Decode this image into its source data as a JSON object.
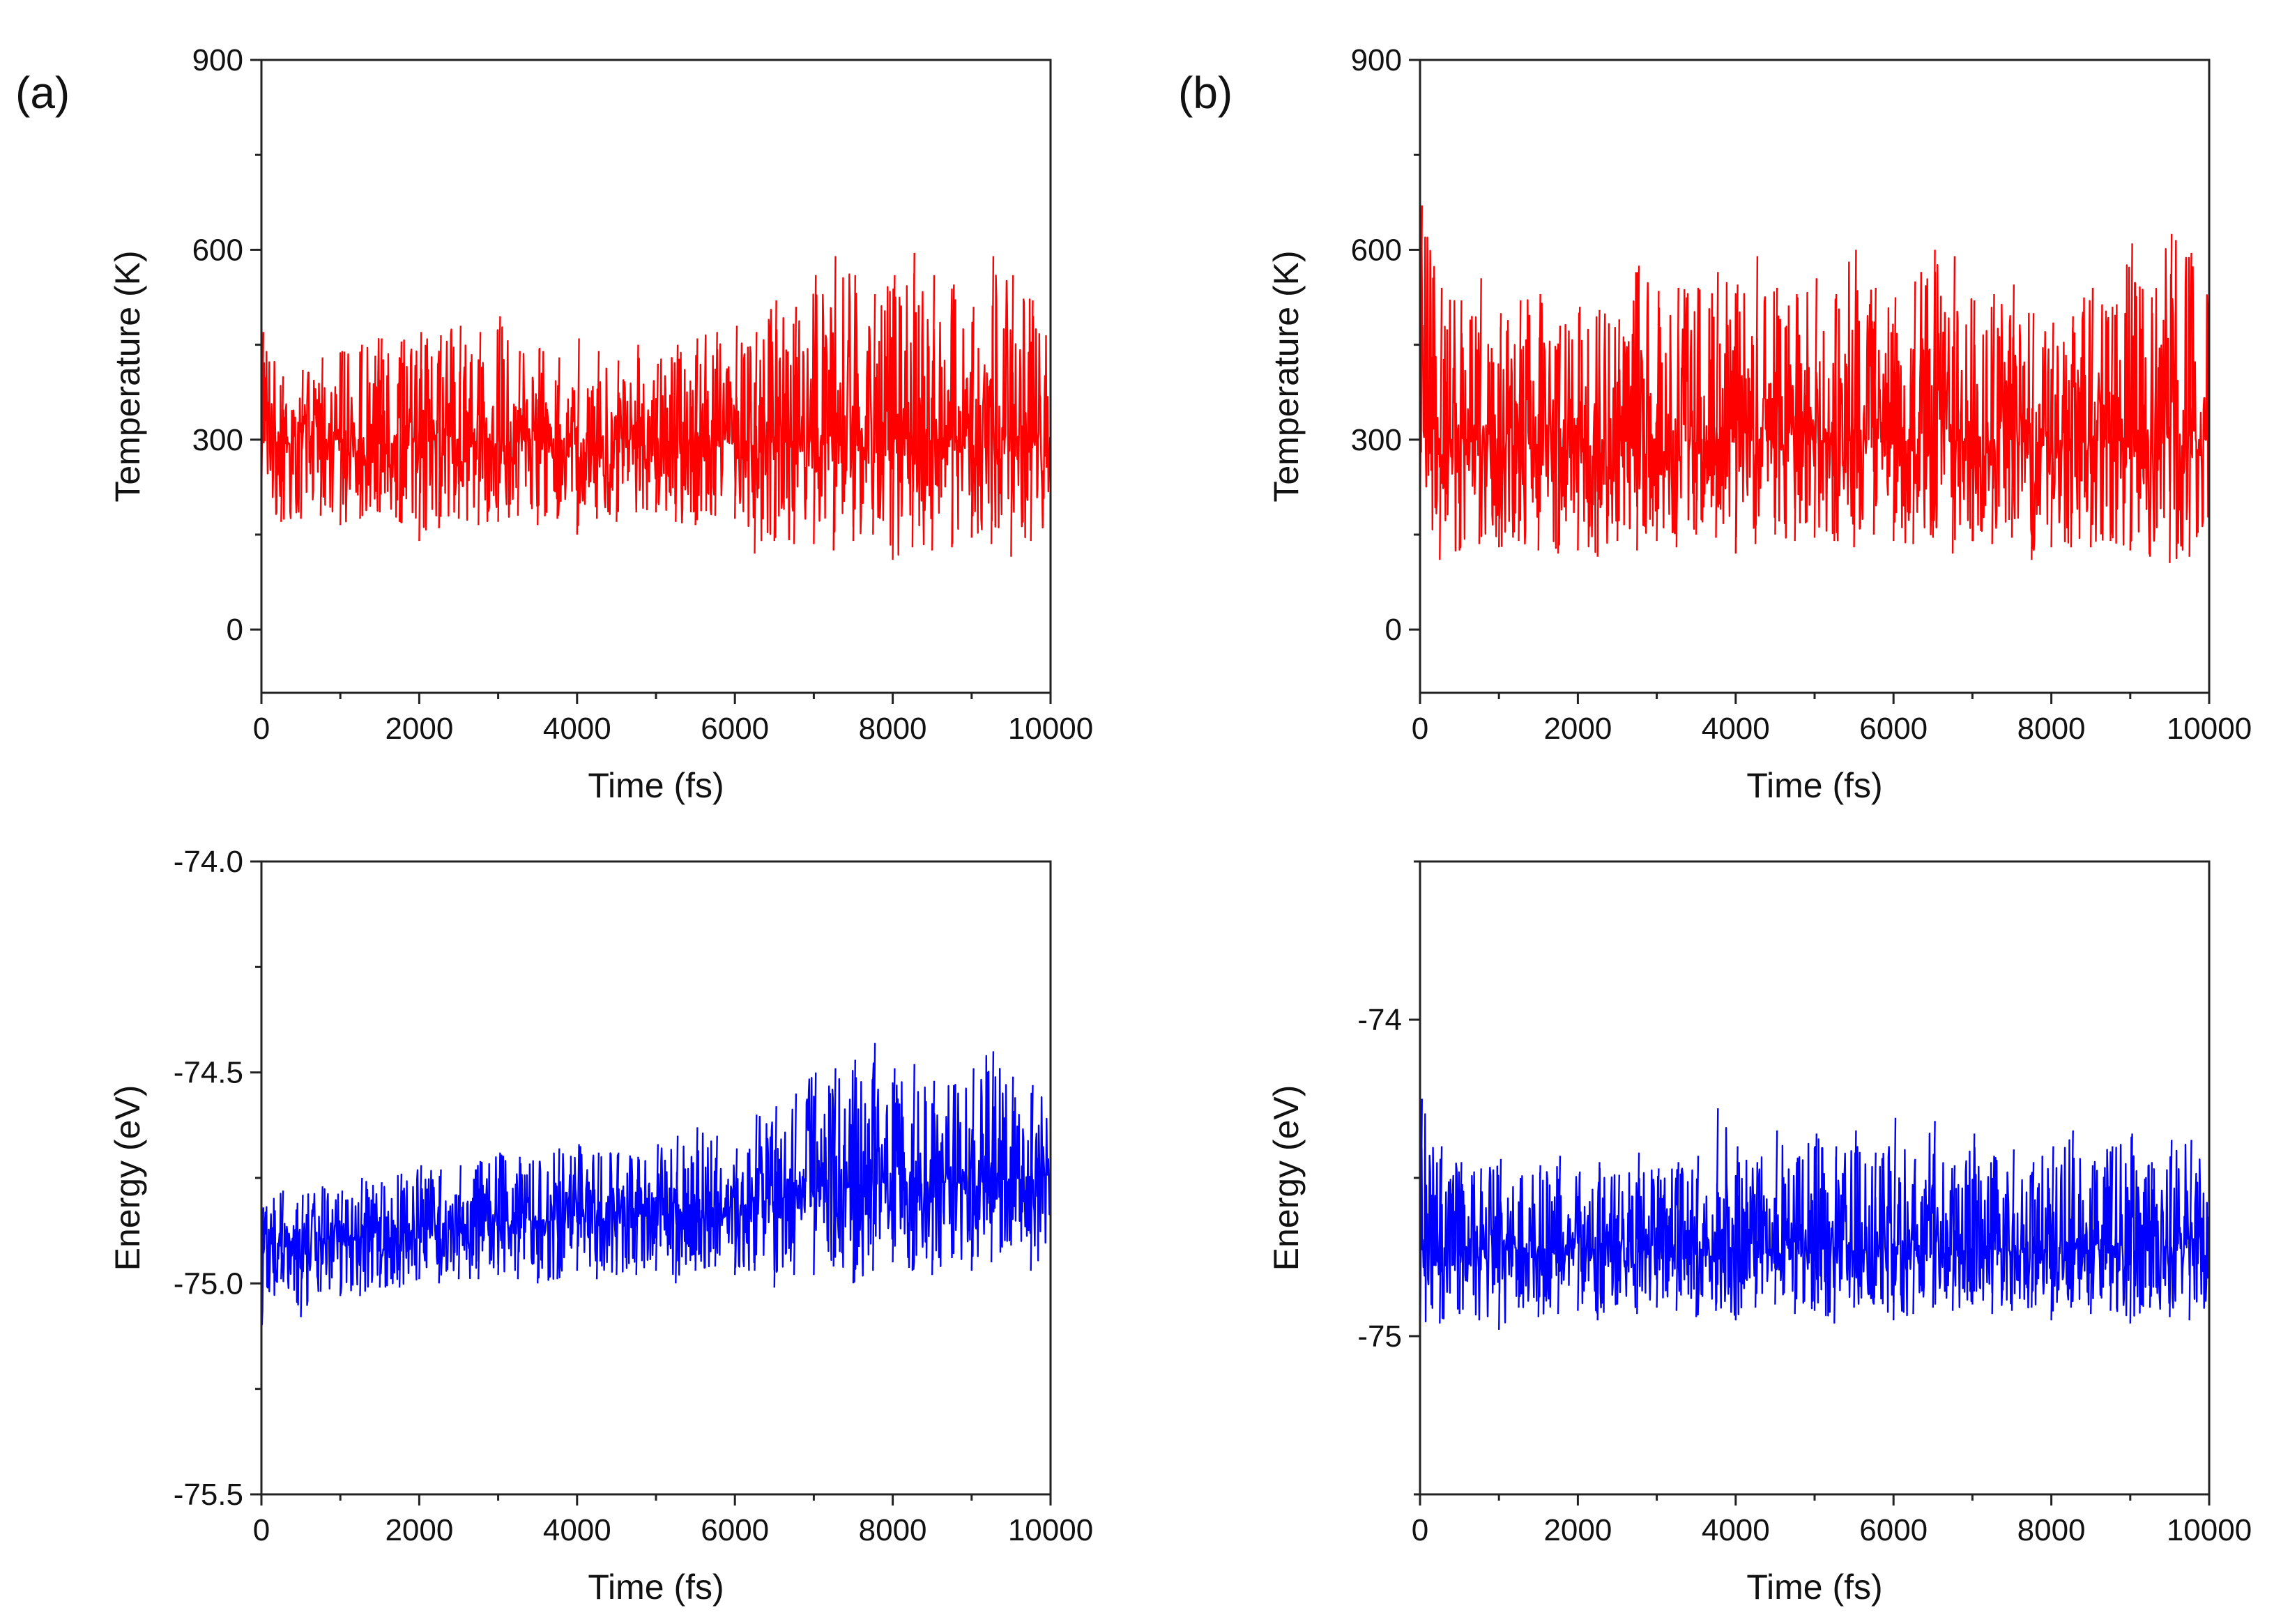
{
  "panels": [
    {
      "label": "(a)"
    },
    {
      "label": "(b)"
    }
  ],
  "chart_data": [
    {
      "id": "a-temperature",
      "panel": "(a)",
      "type": "line",
      "title": "",
      "xlabel": "Time (fs)",
      "ylabel": "Temperature (K)",
      "xlim": [
        0,
        10000
      ],
      "ylim": [
        -100,
        900
      ],
      "xticks": [
        0,
        2000,
        4000,
        6000,
        8000,
        10000
      ],
      "yticks": [
        0,
        300,
        600,
        900
      ],
      "color": "#ff0000",
      "grid": false,
      "series": [
        {
          "name": "Temperature",
          "sample_step_fs": 250,
          "mean": [
            340,
            290,
            300,
            300,
            300,
            300,
            300,
            300,
            300,
            300,
            300,
            300,
            300,
            300,
            300,
            300,
            300,
            300,
            300,
            300,
            300,
            300,
            300,
            300,
            300,
            300,
            300,
            300,
            300,
            300,
            300,
            300,
            300,
            300,
            300,
            300,
            300,
            300,
            300,
            300,
            300
          ],
          "min": [
            210,
            170,
            175,
            180,
            165,
            175,
            185,
            170,
            140,
            160,
            175,
            165,
            170,
            180,
            165,
            175,
            150,
            175,
            170,
            185,
            185,
            170,
            165,
            180,
            175,
            120,
            140,
            135,
            135,
            125,
            140,
            150,
            110,
            130,
            125,
            130,
            145,
            135,
            115,
            140,
            170
          ],
          "max": [
            470,
            400,
            410,
            430,
            440,
            450,
            460,
            455,
            470,
            465,
            480,
            470,
            495,
            440,
            445,
            430,
            460,
            440,
            425,
            450,
            420,
            450,
            460,
            470,
            480,
            470,
            520,
            510,
            560,
            590,
            560,
            530,
            560,
            595,
            560,
            545,
            510,
            590,
            560,
            520,
            460
          ]
        }
      ]
    },
    {
      "id": "a-energy",
      "panel": "(a)",
      "type": "line",
      "title": "",
      "xlabel": "Time (fs)",
      "ylabel": "Energy (eV)",
      "xlim": [
        0,
        10000
      ],
      "ylim": [
        -75.5,
        -74.0
      ],
      "xticks": [
        0,
        2000,
        4000,
        6000,
        8000,
        10000
      ],
      "yticks": [
        -75.5,
        -75.0,
        -74.5,
        -74.0
      ],
      "ytick_labels": [
        "-75.5",
        "-75.0",
        "-74.5",
        "-74.0"
      ],
      "color": "#0000ff",
      "grid": false,
      "series": [
        {
          "name": "Energy",
          "sample_step_fs": 250,
          "mean": [
            -74.93,
            -74.91,
            -74.91,
            -74.9,
            -74.9,
            -74.89,
            -74.89,
            -74.88,
            -74.88,
            -74.87,
            -74.87,
            -74.86,
            -74.86,
            -74.86,
            -74.85,
            -74.85,
            -74.85,
            -74.85,
            -74.84,
            -74.84,
            -74.84,
            -74.83,
            -74.83,
            -74.82,
            -74.82,
            -74.81,
            -74.8,
            -74.79,
            -74.78,
            -74.77,
            -74.77,
            -74.76,
            -74.76,
            -74.76,
            -74.76,
            -74.76,
            -74.76,
            -74.76,
            -74.75,
            -74.75,
            -74.75
          ],
          "min": [
            -75.12,
            -74.99,
            -75.08,
            -75.02,
            -75.03,
            -75.03,
            -75.01,
            -75.01,
            -74.99,
            -75.0,
            -74.99,
            -74.99,
            -74.98,
            -74.99,
            -75.0,
            -74.99,
            -74.97,
            -74.99,
            -74.98,
            -74.98,
            -74.97,
            -75.0,
            -74.97,
            -74.96,
            -74.98,
            -74.97,
            -75.01,
            -74.98,
            -74.98,
            -74.96,
            -75.0,
            -74.97,
            -74.95,
            -74.97,
            -74.98,
            -74.94,
            -74.97,
            -74.95,
            -74.91,
            -74.97,
            -74.92
          ],
          "max": [
            -74.82,
            -74.78,
            -74.79,
            -74.77,
            -74.78,
            -74.75,
            -74.76,
            -74.74,
            -74.72,
            -74.73,
            -74.72,
            -74.71,
            -74.69,
            -74.7,
            -74.71,
            -74.68,
            -74.67,
            -74.69,
            -74.69,
            -74.7,
            -74.67,
            -74.65,
            -74.63,
            -74.65,
            -74.68,
            -74.6,
            -74.58,
            -74.55,
            -74.5,
            -74.49,
            -74.47,
            -74.43,
            -74.49,
            -74.48,
            -74.52,
            -74.53,
            -74.49,
            -74.45,
            -74.51,
            -74.53,
            -74.53
          ]
        }
      ]
    },
    {
      "id": "b-temperature",
      "panel": "(b)",
      "type": "line",
      "title": "",
      "xlabel": "Time (fs)",
      "ylabel": "Temperature (K)",
      "xlim": [
        0,
        10000
      ],
      "ylim": [
        -100,
        900
      ],
      "xticks": [
        0,
        2000,
        4000,
        6000,
        8000,
        10000
      ],
      "yticks": [
        0,
        300,
        600,
        900
      ],
      "color": "#ff0000",
      "grid": false,
      "series": [
        {
          "name": "Temperature",
          "sample_step_fs": 250,
          "mean": [
            310,
            300,
            300,
            300,
            300,
            300,
            300,
            300,
            300,
            300,
            300,
            300,
            300,
            300,
            300,
            300,
            300,
            300,
            300,
            300,
            300,
            300,
            300,
            300,
            300,
            300,
            300,
            300,
            300,
            300,
            300,
            300,
            300,
            300,
            300,
            300,
            300,
            300,
            300,
            300,
            300
          ],
          "min": [
            160,
            110,
            125,
            135,
            130,
            140,
            125,
            120,
            125,
            115,
            140,
            125,
            140,
            130,
            150,
            145,
            120,
            135,
            150,
            140,
            145,
            140,
            130,
            150,
            140,
            135,
            145,
            120,
            140,
            135,
            145,
            110,
            130,
            130,
            130,
            140,
            125,
            115,
            105,
            115,
            150
          ],
          "max": [
            670,
            540,
            520,
            555,
            500,
            520,
            530,
            480,
            510,
            505,
            490,
            575,
            535,
            540,
            540,
            565,
            545,
            590,
            540,
            530,
            555,
            530,
            600,
            540,
            525,
            550,
            600,
            590,
            520,
            530,
            545,
            500,
            485,
            495,
            540,
            510,
            610,
            525,
            625,
            595,
            520
          ]
        }
      ]
    },
    {
      "id": "b-energy",
      "panel": "(b)",
      "type": "line",
      "title": "",
      "xlabel": "Time (fs)",
      "ylabel": "Energy (eV)",
      "xlim": [
        0,
        10000
      ],
      "ylim": [
        -75.5,
        -73.5
      ],
      "xticks": [
        0,
        2000,
        4000,
        6000,
        8000,
        10000
      ],
      "yticks": [
        -75,
        -74
      ],
      "ytick_labels": [
        "-75",
        "-74"
      ],
      "color": "#0000ff",
      "grid": false,
      "series": [
        {
          "name": "Energy",
          "sample_step_fs": 250,
          "mean": [
            -74.7,
            -74.72,
            -74.73,
            -74.72,
            -74.73,
            -74.72,
            -74.73,
            -74.72,
            -74.72,
            -74.73,
            -74.72,
            -74.73,
            -74.72,
            -74.72,
            -74.73,
            -74.72,
            -74.72,
            -74.73,
            -74.72,
            -74.72,
            -74.73,
            -74.72,
            -74.72,
            -74.73,
            -74.72,
            -74.72,
            -74.72,
            -74.73,
            -74.72,
            -74.72,
            -74.73,
            -74.72,
            -74.72,
            -74.72,
            -74.73,
            -74.72,
            -74.72,
            -74.73,
            -74.72,
            -74.72,
            -74.72
          ],
          "min": [
            -75.05,
            -74.96,
            -74.93,
            -74.95,
            -74.98,
            -74.91,
            -74.94,
            -74.93,
            -74.92,
            -74.95,
            -74.9,
            -74.93,
            -74.91,
            -74.92,
            -74.94,
            -74.92,
            -74.95,
            -74.91,
            -74.9,
            -74.93,
            -74.92,
            -74.96,
            -74.91,
            -74.9,
            -74.95,
            -74.93,
            -74.91,
            -74.92,
            -74.9,
            -74.93,
            -74.92,
            -74.91,
            -74.95,
            -74.91,
            -74.93,
            -74.92,
            -74.96,
            -74.91,
            -74.94,
            -74.95,
            -74.9
          ],
          "max": [
            -74.25,
            -74.4,
            -74.45,
            -74.47,
            -74.44,
            -74.5,
            -74.46,
            -74.43,
            -74.48,
            -74.45,
            -74.49,
            -74.42,
            -74.47,
            -74.45,
            -74.43,
            -74.28,
            -74.4,
            -74.45,
            -74.35,
            -74.45,
            -74.36,
            -74.4,
            -74.35,
            -74.42,
            -74.31,
            -74.44,
            -74.32,
            -74.46,
            -74.36,
            -74.43,
            -74.41,
            -74.45,
            -74.4,
            -74.35,
            -74.46,
            -74.4,
            -74.36,
            -74.45,
            -74.38,
            -74.38,
            -74.43
          ]
        }
      ]
    }
  ]
}
